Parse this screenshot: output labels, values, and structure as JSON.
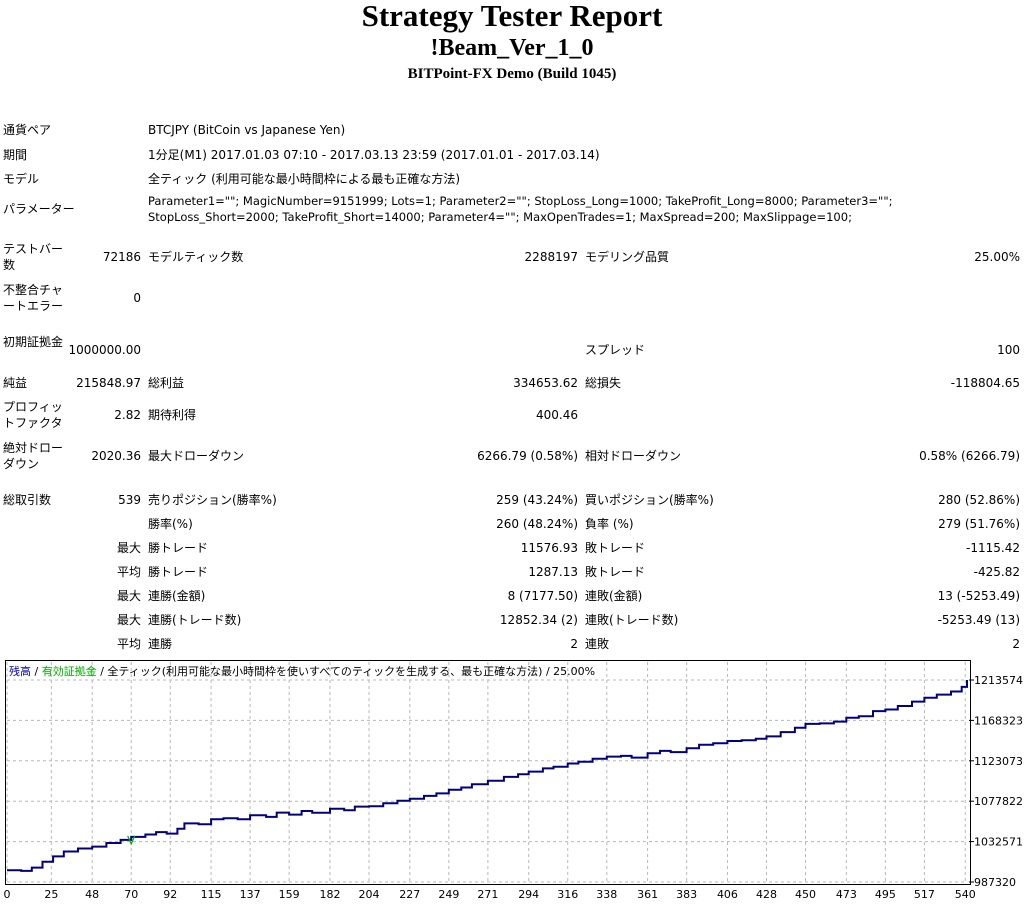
{
  "header": {
    "title": "Strategy Tester Report",
    "ea_name": "!Beam_Ver_1_0",
    "server": "BITPoint-FX Demo (Build 1045)"
  },
  "settings": {
    "symbol_label": "通貨ペア",
    "symbol_value": "BTCJPY (BitCoin vs Japanese Yen)",
    "period_label": "期間",
    "period_value": "1分足(M1) 2017.01.03 07:10 - 2017.03.13 23:59 (2017.01.01 - 2017.03.14)",
    "model_label": "モデル",
    "model_value": "全ティック (利用可能な最小時間枠による最も正確な方法)",
    "params_label": "パラメーター",
    "params_line1": "Parameter1=\"\"; MagicNumber=9151999; Lots=1; Parameter2=\"\"; StopLoss_Long=1000; TakeProfit_Long=8000; Parameter3=\"\";",
    "params_line2": "StopLoss_Short=2000; TakeProfit_Short=14000; Parameter4=\"\"; MaxOpenTrades=1; MaxSpread=200; MaxSlippage=100;"
  },
  "stats": {
    "bars_label": "テストバー数",
    "bars_value": "72186",
    "ticks_label": "モデルティック数",
    "ticks_value": "2288197",
    "quality_label": "モデリング品質",
    "quality_value": "25.00%",
    "mismatch_label": "不整合チャートエラー",
    "mismatch_value": "0",
    "deposit_label": "初期証拠金",
    "deposit_value": "1000000.00",
    "spread_label": "スプレッド",
    "spread_value": "100",
    "net_label": "純益",
    "net_value": "215848.97",
    "gross_profit_label": "総利益",
    "gross_profit_value": "334653.62",
    "gross_loss_label": "総損失",
    "gross_loss_value": "-118804.65",
    "pf_label": "プロフィットファクタ",
    "pf_value": "2.82",
    "payoff_label": "期待利得",
    "payoff_value": "400.46",
    "abs_dd_label": "絶対ドローダウン",
    "abs_dd_value": "2020.36",
    "max_dd_label": "最大ドローダウン",
    "max_dd_value": "6266.79 (0.58%)",
    "rel_dd_label": "相対ドローダウン",
    "rel_dd_value": "0.58% (6266.79)",
    "total_trades_label": "総取引数",
    "total_trades_value": "539",
    "short_label": "売りポジション(勝率%)",
    "short_value": "259 (43.24%)",
    "long_label": "買いポジション(勝率%)",
    "long_value": "280 (52.86%)",
    "win_rate_label": "勝率(%)",
    "win_rate_value": "260 (48.24%)",
    "loss_rate_label": "負率 (%)",
    "loss_rate_value": "279 (51.76%)",
    "max_word": "最大",
    "avg_word": "平均",
    "largest_win_label": "勝トレード",
    "largest_win_value": "11576.93",
    "largest_loss_label": "敗トレード",
    "largest_loss_value": "-1115.42",
    "avg_win_label": "勝トレード",
    "avg_win_value": "1287.13",
    "avg_loss_label": "敗トレード",
    "avg_loss_value": "-425.82",
    "max_consec_win_amt_label": "連勝(金額)",
    "max_consec_win_amt_value": "8 (7177.50)",
    "max_consec_loss_amt_label": "連敗(金額)",
    "max_consec_loss_amt_value": "13 (-5253.49)",
    "max_consec_win_cnt_label": "連勝(トレード数)",
    "max_consec_win_cnt_value": "12852.34 (2)",
    "max_consec_loss_cnt_label": "連敗(トレード数)",
    "max_consec_loss_cnt_value": "-5253.49 (13)",
    "avg_consec_win_label": "連勝",
    "avg_consec_win_value": "2",
    "avg_consec_loss_label": "連敗",
    "avg_consec_loss_value": "2"
  },
  "chart_data": {
    "type": "line",
    "legend_balance": "残高",
    "legend_sep1": " / ",
    "legend_equity": "有効証拠金",
    "legend_sep2": " / ",
    "legend_model": "全ティック(利用可能な最小時間枠を使いすべてのティックを生成する、最も正確な方法)",
    "legend_sep3": " / ",
    "legend_quality": "25.00%",
    "x_ticks": [
      "0",
      "25",
      "48",
      "70",
      "92",
      "115",
      "137",
      "159",
      "182",
      "204",
      "227",
      "249",
      "271",
      "294",
      "316",
      "338",
      "361",
      "383",
      "406",
      "428",
      "450",
      "473",
      "495",
      "517",
      "540"
    ],
    "y_ticks": [
      "1213574",
      "1168323",
      "1123073",
      "1077822",
      "1032571",
      "987320"
    ],
    "ylim": [
      987320,
      1213574
    ],
    "xlim": [
      0,
      541
    ],
    "series": [
      {
        "name": "残高",
        "color": "#000080",
        "x": [
          0,
          8,
          14,
          20,
          26,
          32,
          40,
          48,
          56,
          64,
          70,
          78,
          84,
          90,
          96,
          100,
          108,
          115,
          122,
          130,
          137,
          146,
          152,
          159,
          166,
          172,
          182,
          190,
          196,
          204,
          212,
          220,
          227,
          235,
          242,
          249,
          256,
          262,
          271,
          280,
          288,
          294,
          302,
          308,
          316,
          322,
          330,
          338,
          346,
          352,
          361,
          368,
          374,
          383,
          390,
          398,
          406,
          414,
          422,
          428,
          436,
          444,
          450,
          458,
          466,
          473,
          480,
          488,
          495,
          502,
          510,
          517,
          524,
          532,
          538,
          541
        ],
        "y": [
          1000500,
          999800,
          1003500,
          1010000,
          1016000,
          1021500,
          1024800,
          1027000,
          1031000,
          1034500,
          1037800,
          1040500,
          1043200,
          1041500,
          1047000,
          1053000,
          1052000,
          1057500,
          1058800,
          1057600,
          1062000,
          1060200,
          1065000,
          1062800,
          1066800,
          1064800,
          1069400,
          1067600,
          1071800,
          1072200,
          1075600,
          1078400,
          1080500,
          1083800,
          1086600,
          1090600,
          1093200,
          1096800,
          1100700,
          1105000,
          1108000,
          1111000,
          1114600,
          1116400,
          1120000,
          1122000,
          1125400,
          1127800,
          1128600,
          1126700,
          1131600,
          1134200,
          1132800,
          1137200,
          1141000,
          1142800,
          1145300,
          1146000,
          1147800,
          1150400,
          1155200,
          1160000,
          1164400,
          1165000,
          1167000,
          1171400,
          1173000,
          1178700,
          1180500,
          1184500,
          1189400,
          1193700,
          1197200,
          1200700,
          1205800,
          1213574
        ]
      },
      {
        "name": "有効証拠金",
        "color": "#00aa00",
        "x": [
          68,
          69,
          70,
          71,
          72
        ],
        "y": [
          1039000,
          1034500,
          1030000,
          1034500,
          1039000
        ]
      }
    ]
  }
}
